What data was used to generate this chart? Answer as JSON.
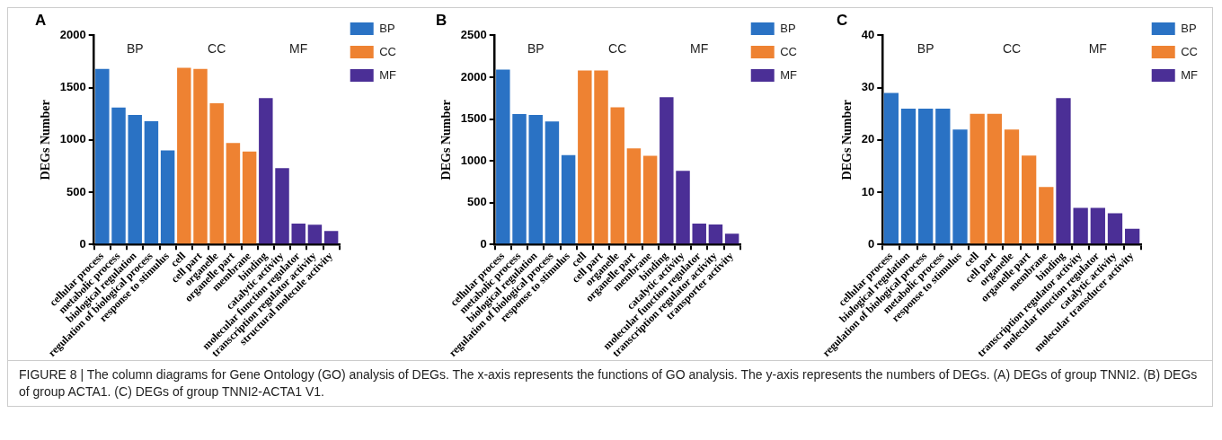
{
  "chart_data": [
    {
      "type": "bar",
      "title": "A",
      "ylabel": "DEGs Number",
      "categories": [
        "cellular process",
        "metabolic process",
        "biological regulation",
        "regulation of biological process",
        "response to stimulus",
        "cell",
        "cell part",
        "organelle",
        "organelle part",
        "membrane",
        "binding",
        "catalytic activity",
        "molecular function regulator",
        "transcription regulator activity",
        "structural molecule activity"
      ],
      "series": [
        {
          "name": "BP",
          "color": "#2a72c4",
          "values": [
            1680,
            1310,
            1240,
            1180,
            900,
            null,
            null,
            null,
            null,
            null,
            null,
            null,
            null,
            null,
            null
          ]
        },
        {
          "name": "CC",
          "color": "#ee8232",
          "values": [
            null,
            null,
            null,
            null,
            null,
            1690,
            1680,
            1350,
            970,
            890,
            null,
            null,
            null,
            null,
            null
          ]
        },
        {
          "name": "MF",
          "color": "#4b2f96",
          "values": [
            null,
            null,
            null,
            null,
            null,
            null,
            null,
            null,
            null,
            null,
            1400,
            730,
            200,
            190,
            130
          ]
        }
      ],
      "ylim": [
        0,
        2000
      ],
      "yticks": [
        0,
        500,
        1000,
        1500,
        2000
      ],
      "legend": "right",
      "annotations": [
        "BP",
        "CC",
        "MF"
      ]
    },
    {
      "type": "bar",
      "title": "B",
      "ylabel": "DEGs Number",
      "categories": [
        "cellular process",
        "metabolic process",
        "biological regulation",
        "regulation of biological process",
        "response to stimulus",
        "cell",
        "cell part",
        "organelle",
        "organelle part",
        "membrane",
        "binding",
        "catalytic activity",
        "molecular function regulator",
        "transcription regulator activity",
        "transporter activity"
      ],
      "series": [
        {
          "name": "BP",
          "color": "#2a72c4",
          "values": [
            2090,
            1560,
            1550,
            1470,
            1070,
            null,
            null,
            null,
            null,
            null,
            null,
            null,
            null,
            null,
            null
          ]
        },
        {
          "name": "CC",
          "color": "#ee8232",
          "values": [
            null,
            null,
            null,
            null,
            null,
            2080,
            2080,
            1640,
            1150,
            1060,
            null,
            null,
            null,
            null,
            null
          ]
        },
        {
          "name": "MF",
          "color": "#4b2f96",
          "values": [
            null,
            null,
            null,
            null,
            null,
            null,
            null,
            null,
            null,
            null,
            1760,
            880,
            250,
            240,
            130
          ]
        }
      ],
      "ylim": [
        0,
        2500
      ],
      "yticks": [
        0,
        500,
        1000,
        1500,
        2000,
        2500
      ],
      "legend": "right",
      "annotations": [
        "BP",
        "CC",
        "MF"
      ]
    },
    {
      "type": "bar",
      "title": "C",
      "ylabel": "DEGs Number",
      "categories": [
        "cellular process",
        "biological regulation",
        "regulation of biological process",
        "metabolic process",
        "response to stimulus",
        "cell",
        "cell part",
        "organelle",
        "organelle part",
        "membrane",
        "binding",
        "transcription regulator activity",
        "molecular function regulator",
        "catalytic activity",
        "molecular transducer activity"
      ],
      "series": [
        {
          "name": "BP",
          "color": "#2a72c4",
          "values": [
            29,
            26,
            26,
            26,
            22,
            null,
            null,
            null,
            null,
            null,
            null,
            null,
            null,
            null,
            null
          ]
        },
        {
          "name": "CC",
          "color": "#ee8232",
          "values": [
            null,
            null,
            null,
            null,
            null,
            25,
            25,
            22,
            17,
            11,
            null,
            null,
            null,
            null,
            null
          ]
        },
        {
          "name": "MF",
          "color": "#4b2f96",
          "values": [
            null,
            null,
            null,
            null,
            null,
            null,
            null,
            null,
            null,
            null,
            28,
            7,
            7,
            6,
            3
          ]
        }
      ],
      "ylim": [
        0,
        40
      ],
      "yticks": [
        0,
        10,
        20,
        30,
        40
      ],
      "legend": "right",
      "annotations": [
        "BP",
        "CC",
        "MF"
      ]
    },
    {
      "type": "other",
      "annotations": [
        "FIGURE 8 | The column diagrams for Gene Ontology (GO) analysis of DEGs. The x-axis represents the functions of GO analysis. The y-axis represents the numbers of DEGs. (A) DEGs of group TNNI2. (B) DEGs of group ACTA1. (C) DEGs of group TNNI2-ACTA1 V1."
      ]
    }
  ]
}
